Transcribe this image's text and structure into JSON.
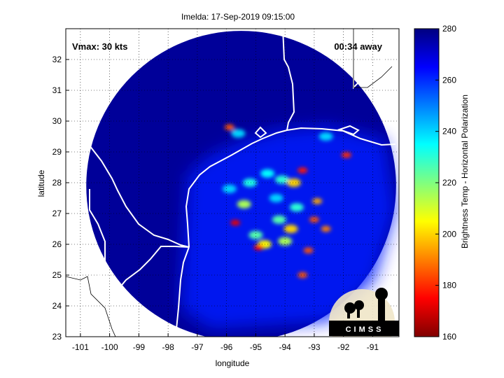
{
  "chart_data": {
    "type": "heatmap",
    "title": "Imelda: 17-Sep-2019 09:15:00",
    "xlabel": "longitude",
    "ylabel": "latitude",
    "xlim": [
      -101.5,
      -90.1
    ],
    "ylim": [
      23,
      33
    ],
    "xticks": [
      -101,
      -100,
      -99,
      -98,
      -97,
      -96,
      -95,
      -94,
      -93,
      -92,
      -91
    ],
    "yticks": [
      23,
      24,
      25,
      26,
      27,
      28,
      29,
      30,
      31,
      32
    ],
    "grid": "dotted",
    "annotations": {
      "left": "Vmax: 30 kts",
      "right": "00:34 away"
    },
    "colorbar": {
      "label": "Brightness Temp - Horizontal Polarization",
      "min": 160,
      "max": 280,
      "ticks": [
        160,
        180,
        200,
        220,
        240,
        260,
        280
      ],
      "colormap": "jet"
    },
    "swath": {
      "center_lon": -95.5,
      "center_lat": 27.9,
      "radius_deg": 5.3,
      "background_temp": 277
    },
    "ocean_region_temp": 262,
    "cold_cells": [
      {
        "lon": -95.2,
        "lat": 28.0,
        "temp": 232
      },
      {
        "lon": -94.6,
        "lat": 28.3,
        "temp": 235
      },
      {
        "lon": -94.1,
        "lat": 28.1,
        "temp": 230
      },
      {
        "lon": -95.9,
        "lat": 27.8,
        "temp": 240
      },
      {
        "lon": -93.4,
        "lat": 28.4,
        "temp": 178
      },
      {
        "lon": -93.7,
        "lat": 28.0,
        "temp": 200
      },
      {
        "lon": -95.4,
        "lat": 27.3,
        "temp": 215
      },
      {
        "lon": -95.7,
        "lat": 26.7,
        "temp": 172
      },
      {
        "lon": -95.0,
        "lat": 26.3,
        "temp": 225
      },
      {
        "lon": -94.7,
        "lat": 26.0,
        "temp": 205
      },
      {
        "lon": -94.2,
        "lat": 26.8,
        "temp": 225
      },
      {
        "lon": -93.8,
        "lat": 26.5,
        "temp": 200
      },
      {
        "lon": -93.6,
        "lat": 27.2,
        "temp": 230
      },
      {
        "lon": -93.0,
        "lat": 26.8,
        "temp": 185
      },
      {
        "lon": -92.6,
        "lat": 26.5,
        "temp": 190
      },
      {
        "lon": -92.9,
        "lat": 27.4,
        "temp": 195
      },
      {
        "lon": -94.9,
        "lat": 25.9,
        "temp": 175
      },
      {
        "lon": -93.2,
        "lat": 25.8,
        "temp": 185
      },
      {
        "lon": -93.4,
        "lat": 25.0,
        "temp": 185
      },
      {
        "lon": -94.0,
        "lat": 26.1,
        "temp": 215
      },
      {
        "lon": -91.9,
        "lat": 28.9,
        "temp": 180
      },
      {
        "lon": -95.9,
        "lat": 29.8,
        "temp": 185
      },
      {
        "lon": -95.6,
        "lat": 29.6,
        "temp": 240
      },
      {
        "lon": -92.6,
        "lat": 29.5,
        "temp": 240
      },
      {
        "lon": -94.3,
        "lat": 27.5,
        "temp": 240
      }
    ],
    "logo": "CIMSS"
  }
}
